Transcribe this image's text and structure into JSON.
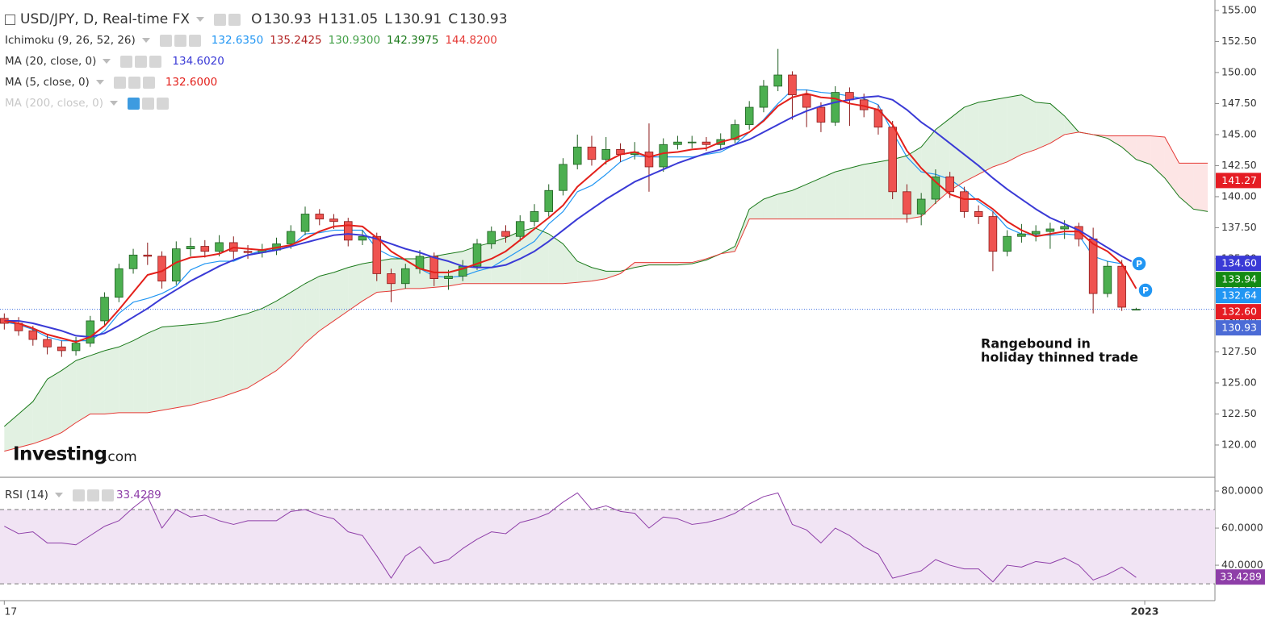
{
  "chart_data": [
    {
      "type": "candlestick",
      "title": "USD/JPY, D, Real-time FX",
      "ohlc_labels": [
        "O",
        "H",
        "L",
        "C"
      ],
      "open": [
        130.2,
        129.8,
        129.2,
        128.5,
        127.9,
        127.6,
        128.2,
        130.0,
        131.9,
        134.2,
        135.3,
        135.2,
        133.2,
        135.8,
        136.0,
        135.6,
        136.3,
        135.6,
        135.5,
        135.7,
        136.2,
        137.2,
        138.6,
        138.2,
        138.0,
        136.5,
        136.8,
        133.8,
        133.0,
        134.2,
        135.2,
        133.4,
        133.6,
        134.4,
        136.2,
        137.2,
        136.8,
        138.0,
        138.8,
        140.5,
        142.6,
        144.0,
        143.0,
        143.8,
        143.4,
        143.6,
        142.4,
        144.2,
        144.4,
        144.4,
        144.2,
        144.6,
        145.8,
        147.2,
        148.9,
        149.8,
        148.2,
        147.2,
        146.0,
        148.4,
        147.8,
        147.0,
        145.6,
        140.4,
        138.6,
        139.8,
        141.6,
        140.4,
        138.8,
        138.4,
        135.6,
        136.8,
        137.0,
        137.2,
        137.4,
        137.6,
        136.6,
        132.2,
        134.4,
        130.93
      ],
      "high": [
        130.6,
        130.3,
        129.6,
        128.9,
        128.4,
        128.7,
        130.4,
        132.3,
        134.6,
        135.8,
        136.3,
        135.6,
        136.4,
        136.7,
        136.5,
        136.9,
        136.8,
        136.1,
        136.2,
        136.7,
        137.7,
        139.2,
        139.0,
        138.6,
        138.3,
        137.3,
        137.1,
        134.2,
        134.6,
        135.7,
        135.5,
        134.1,
        134.9,
        136.6,
        137.6,
        137.7,
        138.5,
        139.4,
        141.0,
        143.1,
        145.0,
        144.9,
        144.8,
        144.3,
        144.4,
        145.9,
        144.7,
        144.9,
        144.9,
        144.8,
        145.1,
        146.2,
        147.7,
        149.4,
        151.9,
        150.1,
        148.6,
        147.6,
        148.9,
        148.8,
        148.3,
        147.4,
        146.1,
        141.0,
        140.3,
        142.2,
        142.0,
        140.8,
        139.3,
        138.8,
        137.3,
        137.8,
        137.7,
        137.9,
        138.1,
        137.9,
        137.5,
        134.8,
        134.9,
        131.05
      ],
      "low": [
        129.3,
        128.8,
        128.0,
        127.3,
        127.1,
        127.2,
        127.9,
        129.6,
        131.5,
        133.8,
        134.5,
        132.6,
        132.9,
        135.2,
        135.1,
        135.2,
        135.0,
        135.0,
        135.1,
        135.3,
        135.8,
        136.9,
        137.7,
        137.4,
        136.0,
        136.1,
        133.2,
        131.5,
        132.6,
        133.8,
        132.8,
        132.5,
        133.2,
        134.1,
        135.8,
        136.3,
        136.4,
        137.6,
        138.4,
        140.1,
        142.2,
        142.5,
        142.6,
        142.8,
        143.0,
        140.4,
        142.0,
        143.8,
        143.9,
        143.7,
        143.8,
        144.3,
        145.4,
        146.8,
        148.5,
        146.2,
        145.6,
        145.2,
        145.7,
        145.7,
        146.4,
        145.0,
        139.8,
        137.9,
        137.7,
        139.4,
        139.9,
        138.3,
        137.8,
        134.0,
        135.2,
        136.3,
        136.4,
        135.8,
        136.6,
        136.0,
        130.6,
        131.9,
        130.8,
        130.91
      ],
      "close": [
        129.8,
        129.2,
        128.5,
        127.9,
        127.6,
        128.2,
        130.0,
        131.9,
        134.2,
        135.3,
        135.2,
        133.2,
        135.8,
        136.0,
        135.6,
        136.3,
        135.6,
        135.5,
        135.7,
        136.2,
        137.2,
        138.6,
        138.2,
        138.0,
        136.5,
        136.8,
        133.8,
        133.0,
        134.2,
        135.2,
        133.4,
        133.6,
        134.4,
        136.2,
        137.2,
        136.8,
        138.0,
        138.8,
        140.5,
        142.6,
        144.0,
        143.0,
        143.8,
        143.4,
        143.6,
        142.4,
        144.2,
        144.4,
        144.4,
        144.2,
        144.6,
        145.8,
        147.2,
        148.9,
        149.8,
        148.2,
        147.2,
        146.0,
        148.4,
        147.8,
        147.0,
        145.6,
        140.4,
        138.6,
        139.8,
        141.6,
        140.4,
        138.8,
        138.4,
        135.6,
        136.8,
        137.0,
        137.2,
        137.4,
        137.6,
        136.6,
        132.2,
        134.4,
        131.1,
        130.93
      ],
      "up_color": "#4caf50",
      "down_color": "#ef5350",
      "xlim": [
        -0.3,
        84.5
      ],
      "xticks": [
        {
          "value": 0,
          "label": "17"
        },
        {
          "value": 79.6,
          "label": "2023"
        }
      ],
      "ylim": [
        117.4,
        155.84
      ],
      "yticks": [
        {
          "value": 120,
          "label": "120.00"
        },
        {
          "value": 122.5,
          "label": "122.50"
        },
        {
          "value": 125,
          "label": "125.00"
        },
        {
          "value": 127.5,
          "label": "127.50"
        },
        {
          "value": 130,
          "label": "130.00"
        },
        {
          "value": 132.5,
          "label": "132.50"
        },
        {
          "value": 135,
          "label": "135.00"
        },
        {
          "value": 137.5,
          "label": "137.50"
        },
        {
          "value": 140,
          "label": "140.00"
        },
        {
          "value": 142.5,
          "label": "142.50"
        },
        {
          "value": 145,
          "label": "145.00"
        },
        {
          "value": 147.5,
          "label": "147.50"
        },
        {
          "value": 150,
          "label": "150.00"
        },
        {
          "value": 152.5,
          "label": "152.50"
        },
        {
          "value": 155,
          "label": "155.00"
        }
      ],
      "grid": false,
      "ichimoku": {
        "name": "Ichimoku (9, 26, 52, 26)",
        "cloud_up_color": "#cfe8cf",
        "cloud_down_color": "#fbd3d3",
        "lines": [
          {
            "color": "#2196f3",
            "legend_value": "132.6350",
            "values": [
              129.9,
              129.7,
              129.3,
              128.7,
              128.4,
              128.4,
              128.4,
              129.2,
              130.6,
              131.5,
              131.8,
              132.2,
              132.8,
              134.1,
              134.6,
              134.8,
              134.8,
              135.3,
              135.7,
              135.7,
              136.0,
              137.0,
              137.1,
              137.3,
              137.3,
              137.3,
              135.8,
              135.2,
              134.9,
              134.2,
              133.6,
              133.5,
              133.6,
              134.0,
              134.3,
              135.0,
              135.7,
              136.4,
              137.8,
              138.8,
              140.4,
              140.9,
              141.8,
              142.8,
              143.3,
              143.2,
              143.2,
              143.2,
              143.2,
              143.4,
              143.6,
              144.2,
              145.2,
              146.2,
              147.5,
              148.6,
              148.6,
              148.4,
              148.3,
              148.1,
              147.9,
              147.4,
              145.2,
              143.2,
              142.0,
              141.8,
              141.4,
              140.6,
              139.6,
              138.8,
              137.5,
              137.0,
              136.9,
              136.9,
              137.0,
              136.9,
              135.2,
              134.8,
              134.6,
              132.64
            ]
          },
          {
            "color": "#b22222",
            "legend_value": "135.2425"
          },
          {
            "color": "#43a047",
            "legend_value": "130.9300"
          },
          {
            "color": "#1b7a1b",
            "legend_value": "142.3975",
            "values": [
              121.5,
              122.5,
              123.5,
              125.3,
              126.0,
              126.8,
              127.2,
              127.6,
              127.9,
              128.4,
              129.0,
              129.5,
              129.6,
              129.7,
              129.8,
              130.0,
              130.3,
              130.6,
              131.0,
              131.6,
              132.3,
              133.0,
              133.6,
              133.9,
              134.3,
              134.6,
              134.8,
              135.0,
              135.0,
              135.0,
              135.2,
              135.4,
              135.6,
              136.0,
              136.3,
              136.7,
              137.2,
              137.5,
              137.0,
              136.2,
              134.8,
              134.3,
              134.0,
              134.0,
              134.3,
              134.5,
              134.5,
              134.5,
              134.6,
              134.9,
              135.4,
              136.0,
              139.0,
              139.8,
              140.2,
              140.5,
              141.0,
              141.5,
              142.0,
              142.3,
              142.6,
              142.8,
              143.0,
              143.3,
              144.0,
              145.4,
              146.3,
              147.2,
              147.6,
              147.8,
              148.0,
              148.2,
              147.6,
              147.5,
              146.5,
              145.2,
              145.0,
              144.7,
              144.0,
              143.0,
              142.6,
              141.5,
              140.0,
              139.0,
              138.8
            ]
          },
          {
            "color": "#e53935",
            "legend_value": "144.8200",
            "values": [
              119.5,
              119.8,
              120.1,
              120.5,
              121.0,
              121.8,
              122.5,
              122.5,
              122.6,
              122.6,
              122.6,
              122.8,
              123.0,
              123.2,
              123.5,
              123.8,
              124.2,
              124.6,
              125.3,
              126.0,
              127.0,
              128.2,
              129.2,
              130.0,
              130.8,
              131.6,
              132.3,
              132.4,
              132.6,
              132.6,
              132.7,
              132.8,
              133.0,
              133.0,
              133.0,
              133.0,
              133.0,
              133.0,
              133.0,
              133.0,
              133.1,
              133.2,
              133.4,
              133.8,
              134.7,
              134.7,
              134.7,
              134.7,
              134.7,
              135.0,
              135.4,
              135.6,
              138.2,
              138.2,
              138.2,
              138.2,
              138.2,
              138.2,
              138.2,
              138.2,
              138.2,
              138.2,
              138.2,
              138.2,
              138.4,
              139.5,
              140.5,
              141.2,
              141.8,
              142.4,
              142.8,
              143.4,
              143.8,
              144.3,
              145.0,
              145.2,
              145.0,
              144.9,
              144.9,
              144.9,
              144.9,
              144.8,
              142.7,
              142.7,
              142.7
            ]
          }
        ]
      },
      "series": [
        {
          "name": "MA (20, close, 0)",
          "color": "#3a3ad6",
          "legend_value": "134.6020",
          "values": [
            130.0,
            130.0,
            129.8,
            129.5,
            129.2,
            128.8,
            128.7,
            129.0,
            129.6,
            130.3,
            131.0,
            131.8,
            132.5,
            133.2,
            133.8,
            134.4,
            134.9,
            135.3,
            135.5,
            135.7,
            136.0,
            136.3,
            136.6,
            136.9,
            137.0,
            136.9,
            136.6,
            136.2,
            135.8,
            135.5,
            135.1,
            134.8,
            134.4,
            134.3,
            134.3,
            134.5,
            135.0,
            135.6,
            136.4,
            137.3,
            138.2,
            139.0,
            139.8,
            140.5,
            141.2,
            141.7,
            142.2,
            142.7,
            143.1,
            143.5,
            143.8,
            144.2,
            144.6,
            145.2,
            145.8,
            146.4,
            146.9,
            147.3,
            147.6,
            147.8,
            148.0,
            148.1,
            147.8,
            147.0,
            146.0,
            145.2,
            144.3,
            143.4,
            142.5,
            141.5,
            140.6,
            139.8,
            139.0,
            138.3,
            137.8,
            137.3,
            136.6,
            135.9,
            135.2,
            134.6
          ]
        },
        {
          "name": "MA (5, close, 0)",
          "color": "#e3201b",
          "legend_value": "132.6000",
          "values": [
            130.0,
            129.8,
            129.4,
            128.9,
            128.6,
            128.3,
            128.7,
            129.6,
            130.9,
            132.3,
            133.7,
            134.0,
            134.7,
            135.1,
            135.2,
            135.4,
            135.9,
            135.8,
            135.7,
            135.9,
            136.1,
            136.6,
            137.2,
            137.6,
            137.7,
            137.6,
            136.7,
            135.6,
            134.9,
            134.2,
            133.9,
            133.9,
            134.2,
            134.6,
            135.0,
            135.6,
            136.5,
            137.4,
            138.3,
            139.3,
            140.8,
            141.8,
            142.8,
            143.4,
            143.6,
            143.2,
            143.5,
            143.6,
            143.8,
            143.9,
            144.4,
            144.7,
            145.2,
            146.1,
            147.3,
            148.0,
            148.3,
            148.0,
            147.9,
            147.5,
            147.3,
            147.0,
            145.8,
            143.7,
            142.3,
            141.2,
            140.2,
            139.8,
            139.8,
            139.0,
            138.0,
            137.3,
            136.8,
            137.0,
            137.2,
            137.2,
            136.2,
            135.6,
            134.6,
            132.6
          ]
        },
        {
          "name": "MA (200, close, 0)",
          "hidden": true
        }
      ],
      "last_price_color": "#3d6fe1",
      "price_tags": [
        {
          "value": 141.27,
          "color": "#e51c23"
        },
        {
          "value": 134.6,
          "label": "134.60",
          "color": "#3a3ad6"
        },
        {
          "value": 133.94,
          "color": "#138a13"
        },
        {
          "value": 132.64,
          "color": "#2196f3"
        },
        {
          "value": 132.6,
          "label": "132.60",
          "color": "#e51c23"
        },
        {
          "value": 130.93,
          "color": "#4b6bd6"
        }
      ],
      "marker_label": "P",
      "annotation": [
        "Rangebound in",
        "holiday thinned trade"
      ],
      "logo": [
        "Investing",
        ".com"
      ]
    },
    {
      "type": "line",
      "title": "RSI (14)",
      "color": "#8e3ea8",
      "band_color": "#f1e4f4",
      "values": [
        61,
        57,
        58,
        52,
        52,
        51,
        56,
        61,
        64,
        71,
        77,
        60,
        70,
        66,
        67,
        64,
        62,
        64,
        64,
        64,
        69,
        70,
        67,
        65,
        58,
        56,
        45,
        33,
        45,
        50,
        41,
        43,
        49,
        54,
        58,
        57,
        63,
        65,
        68,
        74,
        79,
        70,
        72,
        69,
        68,
        60,
        66,
        65,
        62,
        63,
        65,
        68,
        73,
        77,
        79,
        62,
        59,
        52,
        60,
        56,
        50,
        46,
        33,
        35,
        37,
        43,
        40,
        38,
        38,
        31,
        40,
        39,
        42,
        41,
        44,
        40,
        32,
        35,
        39,
        33.4289
      ],
      "ylim": [
        20.9,
        87.4
      ],
      "yticks": [
        {
          "value": 40,
          "label": "40.0000"
        },
        {
          "value": 60,
          "label": "60.0000"
        },
        {
          "value": 80,
          "label": "80.0000"
        }
      ],
      "bands": [
        30,
        70
      ]
    }
  ]
}
